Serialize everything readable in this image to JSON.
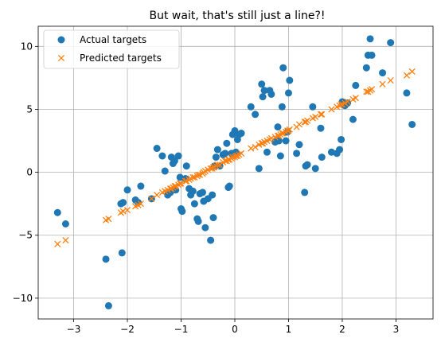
{
  "chart_data": {
    "type": "scatter",
    "title": "But wait, that's still just a line?!",
    "xlabel": "",
    "ylabel": "",
    "xlim": [
      -3.66,
      3.69
    ],
    "ylim": [
      -11.65,
      11.6
    ],
    "xticks": [
      -3,
      -2,
      -1,
      0,
      1,
      2,
      3
    ],
    "yticks": [
      -10,
      -5,
      0,
      5,
      10
    ],
    "xtick_labels": [
      "−3",
      "−2",
      "−1",
      "0",
      "1",
      "2",
      "3"
    ],
    "ytick_labels": [
      "−10",
      "−5",
      "0",
      "5",
      "10"
    ],
    "grid": true,
    "legend_position": "upper-left",
    "series": [
      {
        "name": "Actual targets",
        "marker": "circle",
        "color": "#1f77b4",
        "points": [
          [
            -3.3,
            -3.2
          ],
          [
            -3.15,
            -4.1
          ],
          [
            -2.4,
            -6.9
          ],
          [
            -2.35,
            -10.6
          ],
          [
            -2.1,
            -6.4
          ],
          [
            -2.12,
            -2.5
          ],
          [
            -2.08,
            -2.4
          ],
          [
            -2.0,
            -1.4
          ],
          [
            -1.85,
            -2.2
          ],
          [
            -1.8,
            -2.4
          ],
          [
            -1.75,
            -1.1
          ],
          [
            -1.55,
            -2.1
          ],
          [
            -1.45,
            1.9
          ],
          [
            -1.35,
            1.3
          ],
          [
            -1.3,
            0.1
          ],
          [
            -1.25,
            -1.8
          ],
          [
            -1.2,
            -1.6
          ],
          [
            -1.18,
            1.2
          ],
          [
            -1.15,
            0.7
          ],
          [
            -1.12,
            0.9
          ],
          [
            -1.1,
            -1.4
          ],
          [
            -1.05,
            1.3
          ],
          [
            -1.02,
            -0.4
          ],
          [
            -1.0,
            -2.9
          ],
          [
            -0.98,
            -3.1
          ],
          [
            -0.92,
            -0.5
          ],
          [
            -0.9,
            0.5
          ],
          [
            -0.85,
            -1.3
          ],
          [
            -0.82,
            -1.8
          ],
          [
            -0.78,
            -1.5
          ],
          [
            -0.75,
            -2.5
          ],
          [
            -0.7,
            -3.7
          ],
          [
            -0.68,
            -3.9
          ],
          [
            -0.65,
            -1.7
          ],
          [
            -0.6,
            -1.6
          ],
          [
            -0.58,
            -2.3
          ],
          [
            -0.55,
            -4.4
          ],
          [
            -0.5,
            -2.1
          ],
          [
            -0.45,
            -5.4
          ],
          [
            -0.42,
            -1.8
          ],
          [
            -0.4,
            -3.6
          ],
          [
            -0.38,
            0.5
          ],
          [
            -0.35,
            1.2
          ],
          [
            -0.32,
            1.8
          ],
          [
            -0.28,
            0.5
          ],
          [
            -0.22,
            1.4
          ],
          [
            -0.18,
            1.5
          ],
          [
            -0.15,
            2.3
          ],
          [
            -0.12,
            -1.2
          ],
          [
            -0.1,
            -1.1
          ],
          [
            -0.06,
            1.5
          ],
          [
            -0.04,
            3.0
          ],
          [
            0.0,
            3.3
          ],
          [
            0.02,
            1.6
          ],
          [
            0.05,
            2.6
          ],
          [
            0.08,
            3.0
          ],
          [
            0.12,
            3.1
          ],
          [
            0.3,
            5.2
          ],
          [
            0.38,
            4.6
          ],
          [
            0.45,
            0.3
          ],
          [
            0.5,
            7.0
          ],
          [
            0.52,
            6.0
          ],
          [
            0.55,
            6.5
          ],
          [
            0.6,
            1.6
          ],
          [
            0.65,
            6.5
          ],
          [
            0.68,
            6.2
          ],
          [
            0.75,
            2.4
          ],
          [
            0.8,
            3.6
          ],
          [
            0.82,
            2.5
          ],
          [
            0.85,
            1.3
          ],
          [
            0.88,
            5.2
          ],
          [
            0.9,
            8.3
          ],
          [
            0.95,
            2.5
          ],
          [
            0.98,
            3.2
          ],
          [
            1.0,
            6.3
          ],
          [
            1.02,
            7.3
          ],
          [
            1.15,
            1.5
          ],
          [
            1.2,
            2.2
          ],
          [
            1.3,
            -1.6
          ],
          [
            1.32,
            0.5
          ],
          [
            1.35,
            0.6
          ],
          [
            1.45,
            5.2
          ],
          [
            1.5,
            0.3
          ],
          [
            1.6,
            3.5
          ],
          [
            1.62,
            1.2
          ],
          [
            1.8,
            1.6
          ],
          [
            1.9,
            1.5
          ],
          [
            1.95,
            1.8
          ],
          [
            1.98,
            2.6
          ],
          [
            2.0,
            5.6
          ],
          [
            2.05,
            5.3
          ],
          [
            2.1,
            5.5
          ],
          [
            2.2,
            4.2
          ],
          [
            2.25,
            6.9
          ],
          [
            2.45,
            8.3
          ],
          [
            2.48,
            9.3
          ],
          [
            2.52,
            10.6
          ],
          [
            2.55,
            9.3
          ],
          [
            2.75,
            7.9
          ],
          [
            2.9,
            10.3
          ],
          [
            3.2,
            6.3
          ],
          [
            3.3,
            3.8
          ]
        ]
      },
      {
        "name": "Predicted targets",
        "marker": "x",
        "color": "#ff7f0e",
        "points": [
          [
            -3.3,
            -5.7
          ],
          [
            -3.15,
            -5.4
          ],
          [
            -2.4,
            -3.8
          ],
          [
            -2.35,
            -3.7
          ],
          [
            -2.12,
            -3.2
          ],
          [
            -2.08,
            -3.1
          ],
          [
            -2.0,
            -3.0
          ],
          [
            -1.85,
            -2.7
          ],
          [
            -1.8,
            -2.6
          ],
          [
            -1.75,
            -2.5
          ],
          [
            -1.55,
            -2.1
          ],
          [
            -1.45,
            -1.8
          ],
          [
            -1.35,
            -1.6
          ],
          [
            -1.3,
            -1.5
          ],
          [
            -1.25,
            -1.4
          ],
          [
            -1.2,
            -1.3
          ],
          [
            -1.18,
            -1.3
          ],
          [
            -1.15,
            -1.2
          ],
          [
            -1.12,
            -1.1
          ],
          [
            -1.1,
            -1.1
          ],
          [
            -1.05,
            -1.0
          ],
          [
            -1.02,
            -0.9
          ],
          [
            -1.0,
            -0.9
          ],
          [
            -0.92,
            -0.7
          ],
          [
            -0.9,
            -0.7
          ],
          [
            -0.85,
            -0.6
          ],
          [
            -0.82,
            -0.5
          ],
          [
            -0.78,
            -0.4
          ],
          [
            -0.75,
            -0.4
          ],
          [
            -0.7,
            -0.3
          ],
          [
            -0.68,
            -0.2
          ],
          [
            -0.65,
            -0.2
          ],
          [
            -0.6,
            -0.1
          ],
          [
            -0.58,
            0.0
          ],
          [
            -0.55,
            0.1
          ],
          [
            -0.5,
            0.2
          ],
          [
            -0.45,
            0.3
          ],
          [
            -0.42,
            0.3
          ],
          [
            -0.4,
            0.4
          ],
          [
            -0.38,
            0.4
          ],
          [
            -0.35,
            0.5
          ],
          [
            -0.32,
            0.6
          ],
          [
            -0.28,
            0.6
          ],
          [
            -0.22,
            0.8
          ],
          [
            -0.18,
            0.9
          ],
          [
            -0.15,
            0.9
          ],
          [
            -0.12,
            1.0
          ],
          [
            -0.1,
            1.0
          ],
          [
            -0.06,
            1.1
          ],
          [
            -0.04,
            1.2
          ],
          [
            0.0,
            1.2
          ],
          [
            0.02,
            1.3
          ],
          [
            0.05,
            1.3
          ],
          [
            0.08,
            1.4
          ],
          [
            0.12,
            1.5
          ],
          [
            0.3,
            1.9
          ],
          [
            0.38,
            2.0
          ],
          [
            0.45,
            2.2
          ],
          [
            0.5,
            2.3
          ],
          [
            0.52,
            2.3
          ],
          [
            0.55,
            2.4
          ],
          [
            0.6,
            2.5
          ],
          [
            0.65,
            2.6
          ],
          [
            0.68,
            2.7
          ],
          [
            0.75,
            2.8
          ],
          [
            0.8,
            2.9
          ],
          [
            0.82,
            2.9
          ],
          [
            0.85,
            3.0
          ],
          [
            0.88,
            3.1
          ],
          [
            0.9,
            3.1
          ],
          [
            0.95,
            3.2
          ],
          [
            0.98,
            3.3
          ],
          [
            1.0,
            3.3
          ],
          [
            1.02,
            3.4
          ],
          [
            1.15,
            3.6
          ],
          [
            1.2,
            3.8
          ],
          [
            1.3,
            4.0
          ],
          [
            1.32,
            4.0
          ],
          [
            1.35,
            4.1
          ],
          [
            1.45,
            4.3
          ],
          [
            1.5,
            4.4
          ],
          [
            1.6,
            4.6
          ],
          [
            1.62,
            4.6
          ],
          [
            1.8,
            5.0
          ],
          [
            1.9,
            5.2
          ],
          [
            1.95,
            5.3
          ],
          [
            1.98,
            5.4
          ],
          [
            2.0,
            5.4
          ],
          [
            2.05,
            5.5
          ],
          [
            2.1,
            5.6
          ],
          [
            2.2,
            5.8
          ],
          [
            2.25,
            5.9
          ],
          [
            2.45,
            6.4
          ],
          [
            2.48,
            6.4
          ],
          [
            2.52,
            6.5
          ],
          [
            2.55,
            6.6
          ],
          [
            2.75,
            7.0
          ],
          [
            2.9,
            7.3
          ],
          [
            3.2,
            7.7
          ],
          [
            3.3,
            8.0
          ]
        ]
      }
    ]
  }
}
